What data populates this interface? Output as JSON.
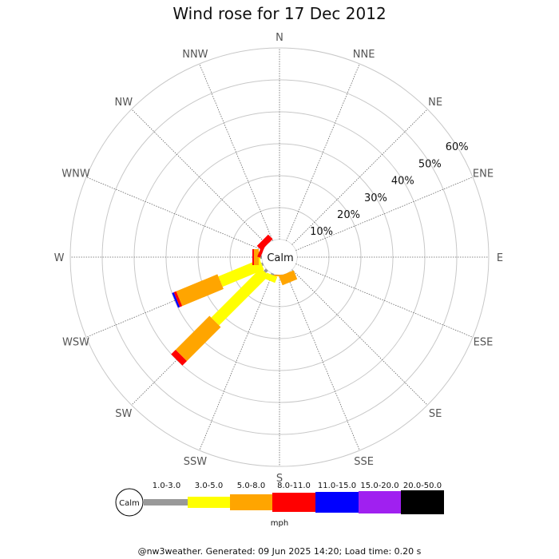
{
  "chart_data": {
    "type": "wind-rose",
    "title": "Wind rose for 17 Dec 2012",
    "directions": [
      "N",
      "NNE",
      "NE",
      "ENE",
      "E",
      "ESE",
      "SE",
      "SSE",
      "S",
      "SSW",
      "SW",
      "WSW",
      "W",
      "WNW",
      "NW",
      "NNW"
    ],
    "radial_ticks": [
      "10%",
      "20%",
      "30%",
      "40%",
      "50%",
      "60%"
    ],
    "radial_max": 60,
    "calm_label": "Calm",
    "unit_label": "mph",
    "speed_bins": [
      {
        "label": "1.0-3.0",
        "color": "#999999"
      },
      {
        "label": "3.0-5.0",
        "color": "#ffff00"
      },
      {
        "label": "5.0-8.0",
        "color": "#ffa500"
      },
      {
        "label": "8.0-11.0",
        "color": "#ff0000"
      },
      {
        "label": "11.0-15.0",
        "color": "#0000ff"
      },
      {
        "label": "15.0-20.0",
        "color": "#a020f0"
      },
      {
        "label": "20.0-50.0",
        "color": "#000000"
      }
    ],
    "series": [
      {
        "direction": "SW",
        "values": [
          1.0,
          22.0,
          15.0,
          2.0,
          0,
          0,
          0
        ]
      },
      {
        "direction": "WSW",
        "values": [
          0.5,
          14.0,
          14.0,
          0.8,
          0.6,
          0,
          0
        ]
      },
      {
        "direction": "W",
        "values": [
          0.5,
          0.5,
          1.5,
          0.5,
          0,
          0,
          0
        ]
      },
      {
        "direction": "WNW",
        "values": [
          0,
          0,
          0,
          1.0,
          0,
          0,
          0
        ]
      },
      {
        "direction": "NW",
        "values": [
          0,
          0,
          0,
          2.0,
          0,
          0,
          0
        ]
      },
      {
        "direction": "S",
        "values": [
          0,
          0,
          0.5,
          0,
          0,
          0,
          0
        ]
      },
      {
        "direction": "SSW",
        "values": [
          0.5,
          2.0,
          0,
          0,
          0,
          0,
          0
        ]
      },
      {
        "direction": "SSE",
        "values": [
          0,
          0,
          3.0,
          0,
          0,
          0,
          0
        ]
      }
    ]
  },
  "footer": "@nw3weather. Generated: 09 Jun 2025 14:20; Load time: 0.20 s"
}
